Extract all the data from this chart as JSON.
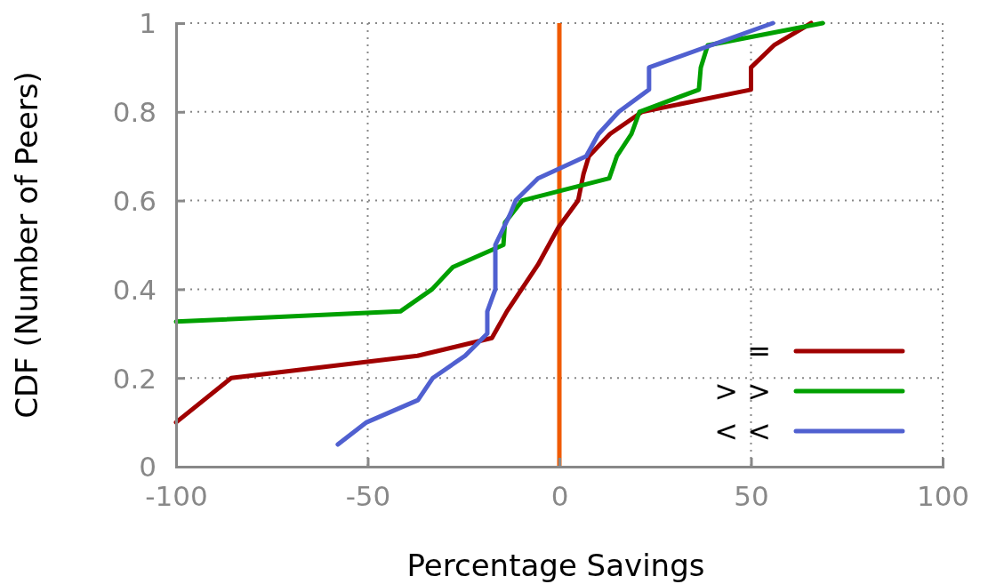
{
  "chart_data": {
    "type": "line",
    "xlabel": "Percentage Savings",
    "ylabel": "CDF (Number of Peers)",
    "xlim": [
      -100,
      100
    ],
    "xticks": [
      -100,
      -50,
      0,
      50,
      100
    ],
    "ylim": [
      0,
      1
    ],
    "yticks": [
      0,
      0.2,
      0.4,
      0.6,
      0.8,
      1
    ],
    "grid": true,
    "legend": "bottom right",
    "line_style": "solid",
    "marker": "none",
    "series": [
      {
        "name": "=",
        "color": "#a00000",
        "x": [
          -100,
          -85.6,
          -37,
          -17.6,
          -13.7,
          -5.6,
          -0.2,
          4.9,
          6.3,
          7.7,
          13.2,
          21.6,
          50,
          50,
          56,
          65.7
        ],
        "values": [
          0.1,
          0.2,
          0.25,
          0.29,
          0.35,
          0.455,
          0.54,
          0.6,
          0.66,
          0.7,
          0.75,
          0.8,
          0.85,
          0.9,
          0.95,
          1
        ]
      },
      {
        "name": "> >",
        "color": "#00a000",
        "x": [
          -100,
          -41.5,
          -33.2,
          -27.8,
          -14.6,
          -14.2,
          -9.7,
          13,
          15,
          18.8,
          20.9,
          36.4,
          36.9,
          38.7,
          68.7
        ],
        "values": [
          0.327,
          0.35,
          0.4,
          0.45,
          0.5,
          0.55,
          0.6,
          0.65,
          0.7,
          0.75,
          0.8,
          0.85,
          0.9,
          0.95,
          1
        ]
      },
      {
        "name": "< <",
        "color": "#5060d0",
        "x": [
          -57.8,
          -50.3,
          -36.9,
          -33,
          -24.6,
          -18.8,
          -18.8,
          -16.7,
          -16.7,
          -12.8,
          -11.4,
          -5.6,
          7,
          10.2,
          15.5,
          23.4,
          23.4,
          55.7
        ],
        "values": [
          0.05,
          0.1,
          0.15,
          0.2,
          0.25,
          0.3,
          0.35,
          0.4,
          0.5,
          0.57,
          0.6,
          0.65,
          0.7,
          0.75,
          0.8,
          0.85,
          0.9,
          1
        ]
      }
    ],
    "ref_lines": [
      {
        "axis": "x",
        "value": 0,
        "color": "#f05a00"
      }
    ]
  }
}
